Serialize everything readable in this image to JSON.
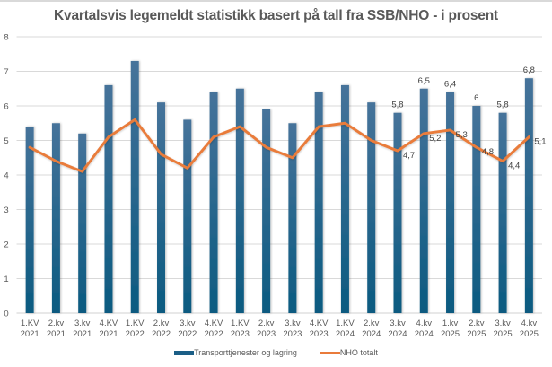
{
  "chart_data": {
    "type": "bar",
    "title": "Kvartalsvis legemeldt statistikk basert på tall fra SSB/NHO - i prosent",
    "xlabel": "",
    "ylabel": "",
    "ylim": [
      0,
      8
    ],
    "yticks": [
      0,
      1,
      2,
      3,
      4,
      5,
      6,
      7,
      8
    ],
    "grid": true,
    "legend_position": "bottom",
    "categories": [
      [
        "1.KV",
        "2021"
      ],
      [
        "2.kv",
        "2021"
      ],
      [
        "3.kv",
        "2021"
      ],
      [
        "4.KV",
        "2021"
      ],
      [
        "1.KV",
        "2022"
      ],
      [
        "2.kv",
        "2022"
      ],
      [
        "3.kv",
        "2022"
      ],
      [
        "4.KV",
        "2022"
      ],
      [
        "1.KV",
        "2023"
      ],
      [
        "2.kv",
        "2023"
      ],
      [
        "3.kv",
        "2023"
      ],
      [
        "4.KV",
        "2023"
      ],
      [
        "1.KV",
        "2024"
      ],
      [
        "2.kv",
        "2024"
      ],
      [
        "3.kv",
        "2024"
      ],
      [
        "4.kv",
        "2024"
      ],
      [
        "1.kv",
        "2025"
      ],
      [
        "2.kv",
        "2025"
      ],
      [
        "3.kv",
        "2025"
      ],
      [
        "4.kv",
        "2025"
      ]
    ],
    "series": [
      {
        "name": "Transporttjenester og lagring",
        "type": "bar",
        "color": "#1b5e86",
        "values": [
          5.4,
          5.5,
          5.2,
          6.6,
          7.3,
          6.1,
          5.6,
          6.4,
          6.5,
          5.9,
          5.5,
          6.4,
          6.6,
          6.1,
          5.8,
          6.5,
          6.4,
          6.0,
          5.8,
          6.8
        ],
        "data_labels": [
          null,
          null,
          null,
          null,
          null,
          null,
          null,
          null,
          null,
          null,
          null,
          null,
          null,
          null,
          "5,8",
          "6,5",
          "6,4",
          "6",
          "5,8",
          "6,8"
        ]
      },
      {
        "name": "NHO totalt",
        "type": "line",
        "color": "#e97b3b",
        "values": [
          4.8,
          4.4,
          4.1,
          5.1,
          5.6,
          4.6,
          4.2,
          5.1,
          5.4,
          4.8,
          4.5,
          5.4,
          5.5,
          5.0,
          4.7,
          5.2,
          5.3,
          4.8,
          4.4,
          5.1
        ],
        "data_labels": [
          null,
          null,
          null,
          null,
          null,
          null,
          null,
          null,
          null,
          null,
          null,
          null,
          null,
          null,
          "4,7",
          "5,2",
          "5,3",
          "4,8",
          "4,4",
          "5,1"
        ]
      }
    ]
  }
}
